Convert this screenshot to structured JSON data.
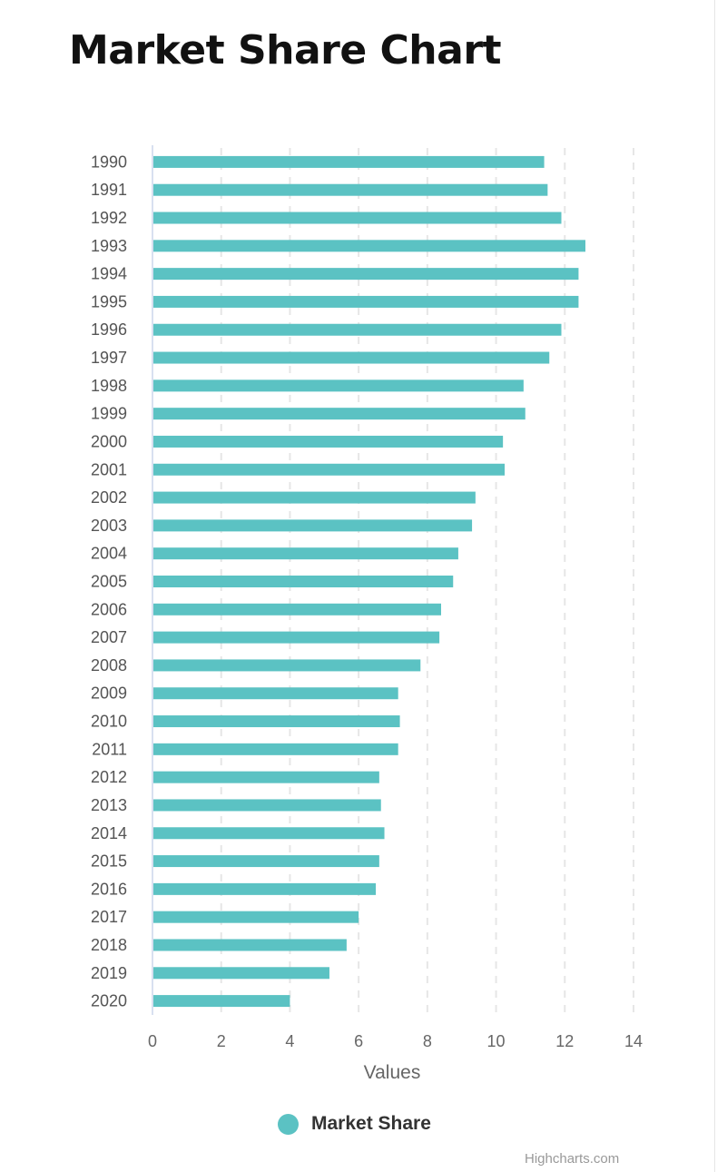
{
  "page": {
    "title": "Market Share Chart"
  },
  "legend": {
    "label": "Market Share"
  },
  "credits": {
    "text": "Highcharts.com"
  },
  "colors": {
    "bar": "#5bc2c3",
    "grid": "#e6e6e6",
    "axis": "#ccd6eb"
  },
  "chart_data": {
    "type": "bar",
    "orientation": "horizontal",
    "title": "Market Share Chart",
    "xlabel": "",
    "ylabel": "Values",
    "xlim": [
      0,
      14
    ],
    "ticks": [
      0,
      2,
      4,
      6,
      8,
      10,
      12,
      14
    ],
    "grid": true,
    "legend_position": "bottom-center",
    "categories": [
      "1990",
      "1991",
      "1992",
      "1993",
      "1994",
      "1995",
      "1996",
      "1997",
      "1998",
      "1999",
      "2000",
      "2001",
      "2002",
      "2003",
      "2004",
      "2005",
      "2006",
      "2007",
      "2008",
      "2009",
      "2010",
      "2011",
      "2012",
      "2013",
      "2014",
      "2015",
      "2016",
      "2017",
      "2018",
      "2019",
      "2020"
    ],
    "series": [
      {
        "name": "Market Share",
        "values": [
          11.4,
          11.5,
          11.9,
          12.6,
          12.4,
          12.4,
          11.9,
          11.55,
          10.8,
          10.85,
          10.2,
          10.25,
          9.4,
          9.3,
          8.9,
          8.75,
          8.4,
          8.35,
          7.8,
          7.15,
          7.2,
          7.15,
          6.6,
          6.65,
          6.75,
          6.6,
          6.5,
          6.0,
          5.65,
          5.15,
          4.0
        ]
      }
    ]
  }
}
